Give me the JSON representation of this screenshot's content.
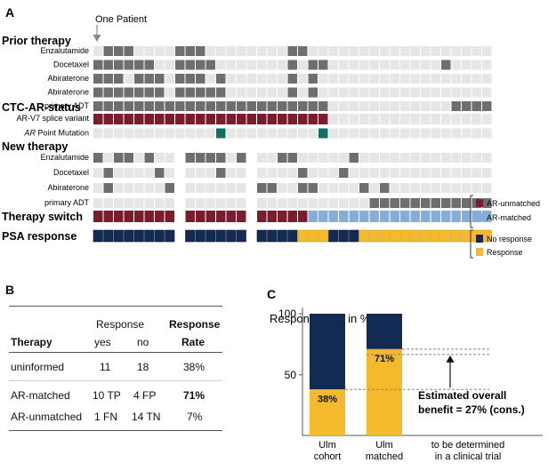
{
  "panels": {
    "a": "A",
    "b": "B",
    "c": "C"
  },
  "heatmap": {
    "patient_annotation": "One Patient",
    "sections": {
      "prior": "Prior therapy",
      "ctc": "CTC-AR-status",
      "new": "New therapy",
      "switch": "Therapy switch",
      "psa": "PSA response"
    },
    "prior_rows": [
      {
        "label": "Enzalutamide",
        "cols": [
          2,
          3,
          4,
          9,
          10,
          11,
          20,
          21
        ]
      },
      {
        "label": "Docetaxel",
        "cols": [
          1,
          2,
          3,
          4,
          5,
          6,
          9,
          10,
          11,
          12,
          20,
          22,
          23,
          35
        ]
      },
      {
        "label": "Abiraterone",
        "cols": [
          1,
          2,
          3,
          5,
          6,
          7,
          9,
          10,
          11,
          13,
          20,
          22
        ]
      },
      {
        "label": "Abiraterone",
        "cols": [
          1,
          2,
          3,
          4,
          5,
          6,
          7,
          9,
          10,
          11,
          12,
          13,
          20,
          22
        ]
      },
      {
        "label": "primary ADT",
        "cols": [
          1,
          2,
          3,
          4,
          5,
          6,
          7,
          8,
          9,
          10,
          11,
          12,
          13,
          14,
          15,
          16,
          17,
          18,
          19,
          20,
          21,
          22,
          23,
          36,
          37,
          38,
          39
        ]
      }
    ],
    "ctc_rows": [
      {
        "label": "AR-V7 splice variant",
        "prefix": "",
        "italic": "",
        "suffix": "",
        "cols": [
          1,
          2,
          3,
          4,
          5,
          6,
          7,
          8,
          9,
          10,
          11,
          12,
          13,
          14,
          15,
          16,
          17,
          18,
          19,
          20,
          21,
          22,
          23
        ]
      },
      {
        "label": "AR Point Mutation",
        "prefix": "",
        "italic": "AR",
        "suffix": " Point Mutation",
        "cols": [
          13,
          23
        ]
      }
    ],
    "new_rows": [
      {
        "label": "Enzalutamide",
        "cols": [
          1,
          3,
          4,
          6,
          10,
          11,
          12,
          13,
          15,
          19,
          20,
          26
        ]
      },
      {
        "label": "Docetaxel",
        "cols": [
          2,
          7,
          13,
          21,
          25
        ]
      },
      {
        "label": "Abiraterone",
        "cols": [
          2,
          8,
          9,
          17,
          18,
          21,
          22,
          27,
          29
        ]
      },
      {
        "label": "primary ADT",
        "cols": [
          28,
          29,
          30,
          31,
          32,
          33,
          34,
          35,
          36,
          37,
          38,
          39
        ]
      }
    ],
    "switch": {
      "unmatched_cols": [
        1,
        2,
        3,
        4,
        5,
        6,
        7,
        8,
        9,
        10,
        11,
        12,
        13,
        14,
        15,
        16,
        17,
        18,
        19,
        20,
        21
      ],
      "matched_cols": [
        22,
        23,
        24,
        25,
        26,
        27,
        28,
        29,
        30,
        31,
        32,
        33,
        34,
        35,
        36,
        37,
        38,
        39
      ]
    },
    "psa": {
      "noresp_cols": [
        1,
        2,
        3,
        4,
        5,
        6,
        7,
        8,
        9,
        10,
        11,
        12,
        13,
        14,
        15,
        16,
        17,
        18,
        19,
        20,
        24,
        25,
        26
      ],
      "resp_cols": [
        21,
        22,
        23,
        27,
        28,
        29,
        30,
        31,
        32,
        33,
        34,
        35,
        36,
        37,
        38,
        39
      ]
    },
    "gap_cols": [
      9,
      16
    ],
    "legend": {
      "ar_unmatched": "AR-unmatched",
      "ar_matched": "AR-matched",
      "no_response": "No response",
      "response": "Response"
    }
  },
  "table": {
    "response_header": "Response",
    "header_therapy": "Therapy",
    "header_yes": "yes",
    "header_no": "no",
    "header_rate_1": "Response",
    "header_rate_2": "Rate",
    "rows": [
      {
        "therapy": "uninformed",
        "yes": "11",
        "no": "18",
        "rate": "38%",
        "bold_rate": false
      },
      {
        "therapy": "AR-matched",
        "yes": "10 TP",
        "no": "4 FP",
        "rate": "71%",
        "bold_rate": true
      },
      {
        "therapy": "AR-unmatched",
        "yes": "1 FN",
        "no": "14 TN",
        "rate": "7%",
        "bold_rate": false
      }
    ]
  },
  "chart_data": {
    "type": "bar",
    "title": "Response rate in %",
    "categories": [
      [
        "Ulm",
        "cohort"
      ],
      [
        "Ulm",
        "matched"
      ],
      [
        "to be determined",
        "in a clinical trial"
      ]
    ],
    "series": [
      {
        "name": "Response",
        "values": [
          38,
          71,
          null
        ]
      },
      {
        "name": "No response",
        "values": [
          62,
          29,
          null
        ]
      }
    ],
    "value_labels": [
      "38%",
      "71%"
    ],
    "yticks": [
      50,
      100
    ],
    "ylim": [
      20,
      100
    ],
    "annotation_1": "Estimated overall",
    "annotation_2": "benefit = 27% (cons.)",
    "colors": {
      "response": "#f5b92e",
      "no_response": "#132a52"
    }
  },
  "colors": {
    "grey_on": "#6e6e6e",
    "grey_off": "#e6e6e6",
    "unmatched": "#7b1b2f",
    "matched": "#86acd8",
    "teal": "#0f6f66",
    "navy": "#132a52",
    "orange": "#f5b92e"
  }
}
